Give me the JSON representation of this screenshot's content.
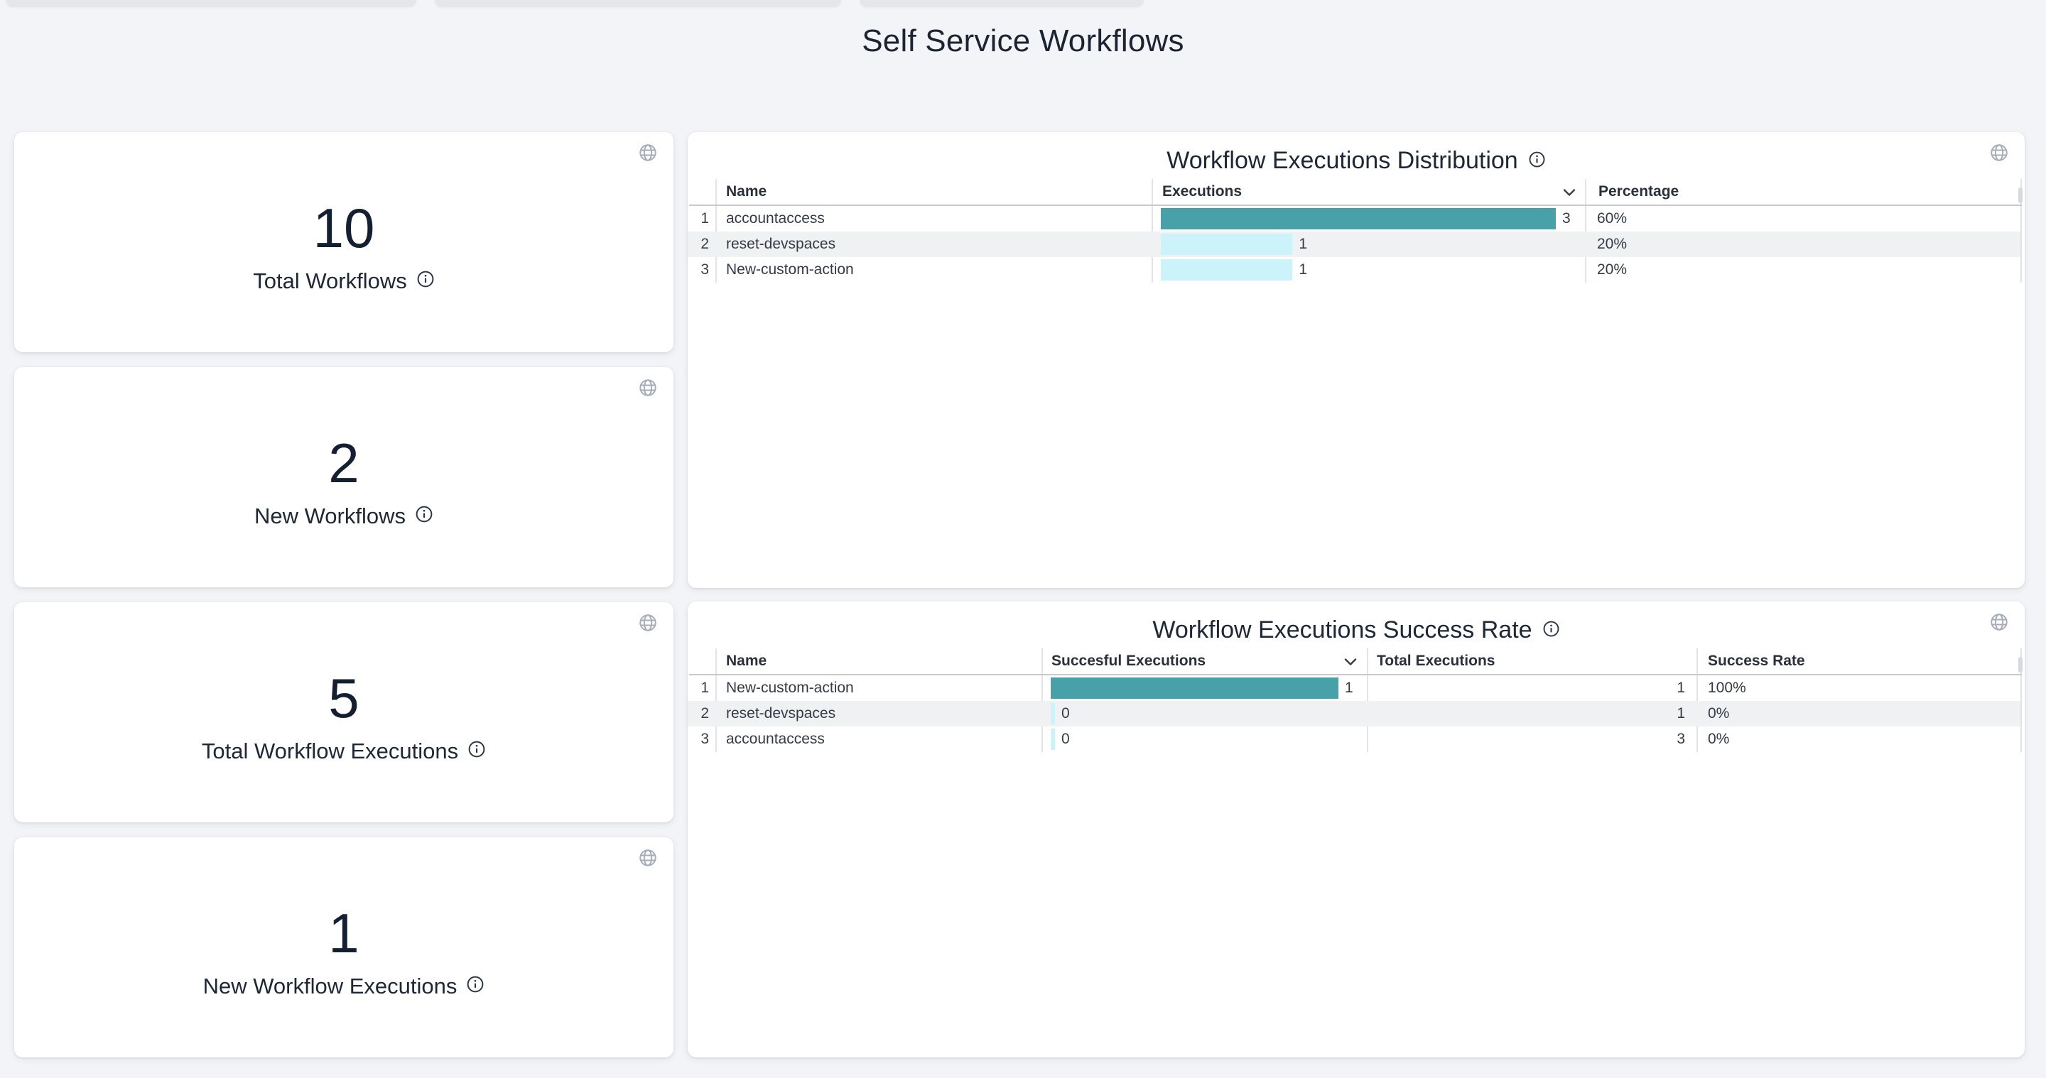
{
  "page": {
    "title": "Self Service Workflows"
  },
  "stat_cards": [
    {
      "value": "10",
      "label": "Total Workflows"
    },
    {
      "value": "2",
      "label": "New Workflows"
    },
    {
      "value": "5",
      "label": "Total Workflow Executions"
    },
    {
      "value": "1",
      "label": "New Workflow Executions"
    }
  ],
  "distribution_table": {
    "title": "Workflow Executions Distribution",
    "columns": [
      "Name",
      "Executions",
      "Percentage"
    ],
    "max_executions": 3,
    "rows": [
      {
        "index": "1",
        "name": "accountaccess",
        "executions": 3,
        "percentage": "60%"
      },
      {
        "index": "2",
        "name": "reset-devspaces",
        "executions": 1,
        "percentage": "20%"
      },
      {
        "index": "3",
        "name": "New-custom-action",
        "executions": 1,
        "percentage": "20%"
      }
    ]
  },
  "success_table": {
    "title": "Workflow Executions Success Rate",
    "columns": [
      "Name",
      "Succesful Executions",
      "Total Executions",
      "Success Rate"
    ],
    "max_successful": 1,
    "rows": [
      {
        "index": "1",
        "name": "New-custom-action",
        "successful": 1,
        "total": "1",
        "rate": "100%"
      },
      {
        "index": "2",
        "name": "reset-devspaces",
        "successful": 0,
        "total": "1",
        "rate": "0%"
      },
      {
        "index": "3",
        "name": "accountaccess",
        "successful": 0,
        "total": "3",
        "rate": "0%"
      }
    ]
  },
  "icons": {
    "globe": "globe-icon",
    "info": "info-icon",
    "sort": "chevron-down-icon"
  },
  "colors": {
    "bar_primary": "#48a1a9",
    "bar_secondary": "#cdf3fa",
    "accent_text": "#1d2736",
    "background": "#f3f4f7"
  },
  "chart_data": [
    {
      "type": "bar",
      "orientation": "horizontal",
      "title": "Workflow Executions Distribution",
      "categories": [
        "accountaccess",
        "reset-devspaces",
        "New-custom-action"
      ],
      "values": [
        3,
        1,
        1
      ],
      "percentages": [
        "60%",
        "20%",
        "20%"
      ],
      "xlim": [
        0,
        3
      ]
    },
    {
      "type": "bar",
      "orientation": "horizontal",
      "title": "Workflow Executions Success Rate",
      "categories": [
        "New-custom-action",
        "reset-devspaces",
        "accountaccess"
      ],
      "values": [
        1,
        0,
        0
      ],
      "totals": [
        1,
        1,
        3
      ],
      "rates": [
        "100%",
        "0%",
        "0%"
      ],
      "xlim": [
        0,
        1
      ]
    }
  ]
}
